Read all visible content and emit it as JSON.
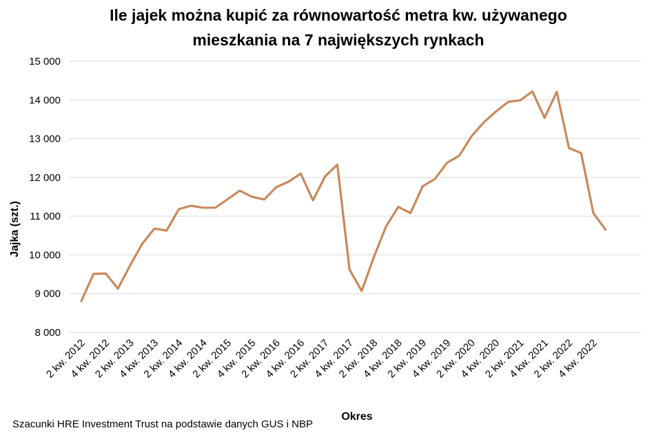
{
  "chart_data": {
    "type": "line",
    "title_lines": [
      "Ile jajek można kupić za równowartość metra kw. używanego",
      "mieszkania na 7 największych rynkach"
    ],
    "xlabel": "Okres",
    "ylabel": "Jajka (szt.)",
    "ylim": [
      8000,
      15000
    ],
    "yticks": [
      8000,
      9000,
      10000,
      11000,
      12000,
      13000,
      14000,
      15000
    ],
    "ytick_labels": [
      "8 000",
      "9 000",
      "10 000",
      "11 000",
      "12 000",
      "13 000",
      "14 000",
      "15 000"
    ],
    "x_tick_labels": [
      "2 kw. 2012",
      "4 kw. 2012",
      "2 kw. 2013",
      "4 kw. 2013",
      "2 kw. 2014",
      "4 kw. 2014",
      "2 kw. 2015",
      "4 kw. 2015",
      "2 kw. 2016",
      "4 kw. 2016",
      "2 kw. 2017",
      "4 kw. 2017",
      "2 kw. 2018",
      "4 kw. 2018",
      "2 kw. 2019",
      "4 kw. 2019",
      "2 kw. 2020",
      "4 kw. 2020",
      "2 kw. 2021",
      "4 kw. 2021",
      "2 kw. 2022",
      "4 kw. 2022"
    ],
    "grid": true,
    "legend": "none",
    "line_color": "#c8895a",
    "series": [
      {
        "values": [
          8810,
          9510,
          9520,
          9130,
          9730,
          10290,
          10680,
          10630,
          11180,
          11270,
          11220,
          11220,
          11440,
          11660,
          11500,
          11430,
          11750,
          11890,
          12100,
          11410,
          12030,
          12330,
          9620,
          9070,
          9950,
          10740,
          11240,
          11080,
          11770,
          11960,
          12380,
          12560,
          13060,
          13420,
          13700,
          13950,
          13990,
          14220,
          13540,
          14210,
          12760,
          12630,
          11080,
          10650
        ]
      }
    ],
    "source_note": "Szacunki HRE Investment Trust na podstawie danych GUS i NBP"
  }
}
